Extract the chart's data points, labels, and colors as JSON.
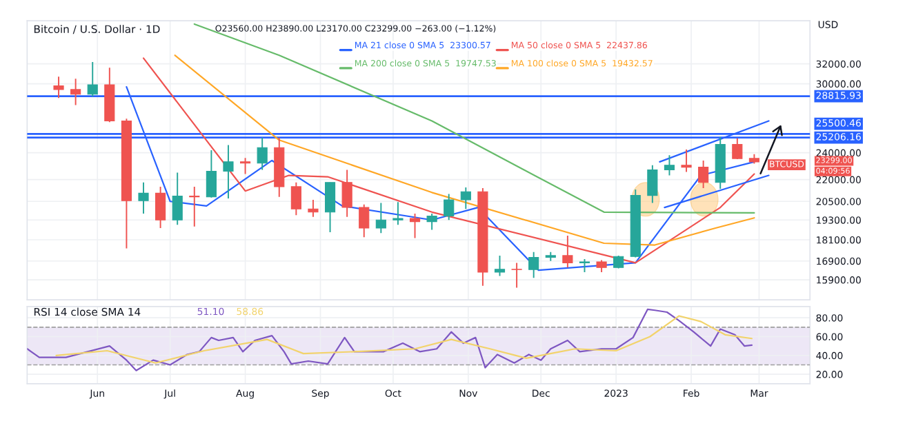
{
  "chart_data": [
    {
      "type": "candlestick",
      "title": "Bitcoin / U.S. Dollar · 1D",
      "ylabel": "USD",
      "annotations": [
        "O23560.00 H23890.00 L23170.00 C23299.00 −263.00 (−1.12%)",
        "BTCUSD",
        "23299.00",
        "04:09:56"
      ],
      "x": [
        "2022-05-16",
        "2022-05-23",
        "2022-05-30",
        "2022-06-06",
        "2022-06-13",
        "2022-06-20",
        "2022-06-27",
        "2022-07-04",
        "2022-07-11",
        "2022-07-18",
        "2022-07-25",
        "2022-08-01",
        "2022-08-08",
        "2022-08-15",
        "2022-08-22",
        "2022-08-29",
        "2022-09-05",
        "2022-09-12",
        "2022-09-19",
        "2022-09-26",
        "2022-10-03",
        "2022-10-10",
        "2022-10-17",
        "2022-10-24",
        "2022-10-31",
        "2022-11-07",
        "2022-11-14",
        "2022-11-21",
        "2022-11-28",
        "2022-12-05",
        "2022-12-12",
        "2022-12-19",
        "2022-12-26",
        "2023-01-02",
        "2023-01-09",
        "2023-01-16",
        "2023-01-23",
        "2023-01-30",
        "2023-02-06",
        "2023-02-13",
        "2023-02-20",
        "2023-02-27"
      ],
      "ohlc": [
        [
          29800,
          30700,
          28650,
          29450
        ],
        [
          29450,
          30500,
          28000,
          29000
        ],
        [
          29000,
          32200,
          28800,
          29900
        ],
        [
          29900,
          31600,
          26500,
          26600
        ],
        [
          26600,
          26800,
          17600,
          20550
        ],
        [
          20550,
          21800,
          19700,
          21050
        ],
        [
          21050,
          21500,
          18800,
          19300
        ],
        [
          19300,
          22500,
          19000,
          20850
        ],
        [
          20850,
          21500,
          18900,
          20800
        ],
        [
          20800,
          24200,
          20750,
          22600
        ],
        [
          22600,
          24600,
          20700,
          23300
        ],
        [
          23300,
          23600,
          22400,
          23200
        ],
        [
          23200,
          25200,
          22700,
          24400
        ],
        [
          24400,
          25200,
          20800,
          21500
        ],
        [
          21500,
          21800,
          19600,
          20000
        ],
        [
          20000,
          20600,
          19500,
          19800
        ],
        [
          19800,
          21800,
          18550,
          21800
        ],
        [
          21800,
          22700,
          19500,
          20100
        ],
        [
          20100,
          20300,
          18250,
          18800
        ],
        [
          18800,
          20400,
          18500,
          19300
        ],
        [
          19300,
          20450,
          19000,
          19400
        ],
        [
          19400,
          19700,
          18200,
          19200
        ],
        [
          19200,
          19700,
          18700,
          19550
        ],
        [
          19550,
          21000,
          19300,
          20600
        ],
        [
          20600,
          21450,
          20000,
          21150
        ],
        [
          21150,
          21400,
          15600,
          16300
        ],
        [
          16300,
          17200,
          16100,
          16450
        ],
        [
          16450,
          16800,
          15500,
          16440
        ],
        [
          16440,
          17400,
          16000,
          17100
        ],
        [
          17100,
          17400,
          16900,
          17200
        ],
        [
          17200,
          18350,
          16550,
          16800
        ],
        [
          16800,
          17000,
          16300,
          16850
        ],
        [
          16850,
          16950,
          16300,
          16550
        ],
        [
          16550,
          17200,
          16500,
          17150
        ],
        [
          17150,
          21300,
          17100,
          20900
        ],
        [
          20900,
          23050,
          20400,
          22700
        ],
        [
          22700,
          23800,
          22300,
          23050
        ],
        [
          23050,
          24250,
          22550,
          22900
        ],
        [
          22900,
          23400,
          21400,
          21800
        ],
        [
          21800,
          25250,
          21350,
          24650
        ],
        [
          24650,
          25150,
          23500,
          23550
        ],
        [
          23560,
          23890,
          23170,
          23299
        ]
      ],
      "colors": [
        "#ef5350",
        "#ef5350",
        "#26a69a",
        "#ef5350",
        "#ef5350",
        "#26a69a",
        "#ef5350",
        "#26a69a",
        "#ef5350",
        "#26a69a",
        "#26a69a",
        "#ef5350",
        "#26a69a",
        "#ef5350",
        "#ef5350",
        "#ef5350",
        "#26a69a",
        "#ef5350",
        "#ef5350",
        "#26a69a",
        "#26a69a",
        "#ef5350",
        "#26a69a",
        "#26a69a",
        "#26a69a",
        "#ef5350",
        "#26a69a",
        "#ef5350",
        "#26a69a",
        "#26a69a",
        "#ef5350",
        "#26a69a",
        "#ef5350",
        "#26a69a",
        "#26a69a",
        "#26a69a",
        "#26a69a",
        "#ef5350",
        "#ef5350",
        "#26a69a",
        "#ef5350",
        "#ef5350"
      ],
      "series": [
        {
          "type": "line",
          "name": "MA 21 close 0 SMA 5  23300.57",
          "color": "#2962ff",
          "x": [
            "2022-06-13",
            "2022-07-01",
            "2022-07-16",
            "2022-08-12",
            "2022-09-10",
            "2022-10-17",
            "2022-11-05",
            "2022-11-30",
            "2023-01-09",
            "2023-02-05",
            "2023-02-27"
          ],
          "values": [
            29700,
            20500,
            20200,
            23400,
            20200,
            19300,
            20100,
            16400,
            16800,
            22300,
            23300
          ]
        },
        {
          "type": "line",
          "name": "MA 50 close 0 SMA 5  22437.86",
          "color": "#ef5350",
          "x": [
            "2022-06-20",
            "2022-08-01",
            "2022-08-19",
            "2022-09-04",
            "2022-10-17",
            "2023-01-09",
            "2023-02-13",
            "2023-02-27"
          ],
          "values": [
            32600,
            21200,
            22300,
            22200,
            19800,
            16800,
            20100,
            22400
          ]
        },
        {
          "type": "line",
          "name": "MA 200 close 0 SMA 5  19747.53",
          "color": "#66bb6a",
          "x": [
            "2022-07-11",
            "2022-08-15",
            "2022-10-17",
            "2022-11-24",
            "2022-12-27",
            "2023-02-27"
          ],
          "values": [
            36400,
            32900,
            26600,
            22700,
            19800,
            19750
          ]
        },
        {
          "type": "line",
          "name": "MA 100 close 0 SMA 5  19432.57",
          "color": "#ffa726",
          "x": [
            "2022-07-03",
            "2022-08-15",
            "2022-10-17",
            "2022-12-27",
            "2023-01-17",
            "2023-02-11",
            "2023-02-27"
          ],
          "values": [
            32900,
            25000,
            21100,
            17900,
            17800,
            18800,
            19430
          ]
        },
        {
          "type": "line",
          "color": "#2962ff",
          "x": [
            "2023-01-19",
            "2023-03-05"
          ],
          "values": [
            23300,
            26600
          ]
        },
        {
          "type": "line",
          "color": "#2962ff",
          "x": [
            "2023-01-21",
            "2023-03-05"
          ],
          "values": [
            20100,
            22300
          ]
        }
      ],
      "ref_lines": [
        {
          "axis": "y",
          "value": 28815.93,
          "label": "28815.93",
          "color": "#2962ff"
        },
        {
          "axis": "y",
          "value": 25500.46,
          "label": "25500.46",
          "color": "#2962ff"
        },
        {
          "axis": "y",
          "value": 25206.16,
          "label": "25206.16",
          "color": "#2962ff"
        }
      ],
      "log": true,
      "grid": true,
      "tick_labels": "y",
      "legend": "top",
      "xlim": [
        "2022-05-03",
        "2023-03-22"
      ],
      "ylim": [
        14900,
        36800
      ],
      "yticks": [
        {
          "value": 32000,
          "label": "32000.00"
        },
        {
          "value": 30000,
          "label": "30000.00"
        },
        {
          "value": 24000,
          "label": "24000.00"
        },
        {
          "value": 22000,
          "label": "22000.00"
        },
        {
          "value": 20500,
          "label": "20500.00"
        },
        {
          "value": 19300,
          "label": "19300.00"
        },
        {
          "value": 18100,
          "label": "18100.00"
        },
        {
          "value": 16900,
          "label": "16900.00"
        },
        {
          "value": 15900,
          "label": "15900.00"
        }
      ]
    },
    {
      "type": "line",
      "title": "RSI 14 close SMA 14",
      "series": [
        {
          "name": "51.10",
          "color": "#7e57c2",
          "x": [
            "2022-05-03",
            "2022-05-08",
            "2022-05-19",
            "2022-05-28",
            "2022-06-06",
            "2022-06-13",
            "2022-06-17",
            "2022-06-24",
            "2022-07-01",
            "2022-07-08",
            "2022-07-13",
            "2022-07-18",
            "2022-07-21",
            "2022-07-27",
            "2022-07-31",
            "2022-08-05",
            "2022-08-12",
            "2022-08-17",
            "2022-08-20",
            "2022-08-27",
            "2022-09-04",
            "2022-09-11",
            "2022-09-15",
            "2022-09-27",
            "2022-10-05",
            "2022-10-12",
            "2022-10-19",
            "2022-10-25",
            "2022-10-30",
            "2022-11-04",
            "2022-11-08",
            "2022-11-13",
            "2022-11-20",
            "2022-11-26",
            "2022-12-01",
            "2022-12-05",
            "2022-12-12",
            "2022-12-17",
            "2022-12-26",
            "2023-01-01",
            "2023-01-08",
            "2023-01-14",
            "2023-01-17",
            "2023-01-22",
            "2023-01-27",
            "2023-02-02",
            "2023-02-09",
            "2023-02-13",
            "2023-02-19",
            "2023-02-23",
            "2023-02-26"
          ],
          "values": [
            47,
            38,
            38,
            44,
            50,
            35,
            24,
            35,
            30,
            41,
            44,
            59,
            56,
            59,
            44,
            56,
            61,
            44,
            31,
            34,
            31,
            59,
            44,
            44,
            53,
            44,
            47,
            65,
            53,
            59,
            27,
            41,
            32,
            41,
            35,
            47,
            56,
            44,
            47,
            47,
            59,
            89,
            88,
            86,
            77,
            65,
            50,
            68,
            62,
            50,
            51
          ]
        },
        {
          "name": "58.86",
          "color": "#f2d36b",
          "x": [
            "2022-05-15",
            "2022-06-05",
            "2022-06-25",
            "2022-07-15",
            "2022-08-10",
            "2022-08-25",
            "2022-09-15",
            "2022-10-10",
            "2022-10-25",
            "2022-11-10",
            "2022-11-25",
            "2022-12-15",
            "2023-01-01",
            "2023-01-15",
            "2023-01-27",
            "2023-02-05",
            "2023-02-15",
            "2023-02-26"
          ],
          "values": [
            40,
            45,
            32,
            45,
            57,
            42,
            44,
            47,
            57,
            47,
            37,
            47,
            45,
            60,
            82,
            76,
            62,
            58
          ]
        }
      ],
      "bands": [
        {
          "axis": "y",
          "from": 30,
          "to": 70,
          "color": "#ede7f6"
        }
      ],
      "ref_lines": [
        {
          "axis": "y",
          "value": 70,
          "color": "#9e9e9e",
          "line_style": "dashed"
        },
        {
          "axis": "y",
          "value": 30,
          "color": "#9e9e9e",
          "line_style": "dashed"
        }
      ],
      "grid": true,
      "xlim": [
        "2022-05-03",
        "2023-03-22"
      ],
      "ylim": [
        10,
        92
      ],
      "xticks": [
        {
          "value": "2022-06-01",
          "label": "Jun"
        },
        {
          "value": "2022-07-01",
          "label": "Jul"
        },
        {
          "value": "2022-08-01",
          "label": "Aug"
        },
        {
          "value": "2022-09-01",
          "label": "Sep"
        },
        {
          "value": "2022-10-01",
          "label": "Oct"
        },
        {
          "value": "2022-11-01",
          "label": "Nov"
        },
        {
          "value": "2022-12-01",
          "label": "Dec"
        },
        {
          "value": "2023-01-01",
          "label": "2023"
        },
        {
          "value": "2023-02-01",
          "label": "Feb"
        },
        {
          "value": "2023-03-01",
          "label": "Mar"
        }
      ],
      "yticks": [
        {
          "value": 20,
          "label": "20.00"
        },
        {
          "value": 40,
          "label": "40.00"
        },
        {
          "value": 60,
          "label": "60.00"
        },
        {
          "value": 80,
          "label": "80.00"
        }
      ]
    }
  ]
}
